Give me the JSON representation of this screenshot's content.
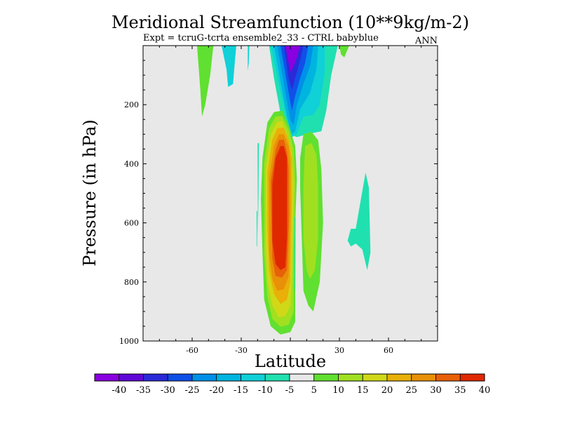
{
  "chart_data": {
    "type": "heatmap",
    "title": "Meridional Streamfunction (10**9kg/m-2)",
    "subtitle": "Expt = tcruG-tcrta ensemble2_33 - CTRL babyblue",
    "season": "ANN",
    "xlabel": "Latitude",
    "ylabel": "Pressure (in hPa)",
    "xlim": [
      -90,
      90
    ],
    "ylim": [
      0,
      1000
    ],
    "y_reversed": true,
    "x_ticks": [
      -60,
      -30,
      0,
      30,
      60
    ],
    "x_tick_labels": [
      "-60",
      "-30",
      "",
      "30",
      "60"
    ],
    "y_ticks": [
      200,
      400,
      600,
      800,
      1000
    ],
    "y_tick_labels": [
      "200",
      "400",
      "600",
      "800",
      "1000"
    ],
    "colorbar": {
      "levels": [
        -40,
        -35,
        -30,
        -25,
        -20,
        -15,
        -10,
        -5,
        5,
        10,
        15,
        20,
        25,
        30,
        35,
        40
      ],
      "labels": [
        "-40",
        "-35",
        "-30",
        "-25",
        "-20",
        "-15",
        "-10",
        "-5",
        "5",
        "10",
        "15",
        "20",
        "25",
        "30",
        "35",
        "40"
      ],
      "colors": [
        "#8a00e0",
        "#5f08d8",
        "#2a2ad8",
        "#1050e8",
        "#0090e8",
        "#00b4e0",
        "#10d0d8",
        "#20e0b0",
        "#e8e8e8",
        "#60e030",
        "#a0e020",
        "#d0d818",
        "#e8b008",
        "#e89008",
        "#e86008",
        "#e02800"
      ]
    },
    "background_color": "#e8e8e8",
    "features": [
      {
        "name": "main-positive-cell",
        "lat_range": [
          -17,
          3
        ],
        "p_range": [
          220,
          975
        ],
        "max": 40
      },
      {
        "name": "upper-negative-cell",
        "lat_range": [
          -13,
          22
        ],
        "p_range": [
          0,
          320
        ],
        "min": -40
      },
      {
        "name": "positive-cell-nh",
        "lat_range": [
          5,
          20
        ],
        "p_range": [
          280,
          1000
        ],
        "max": 15
      },
      {
        "name": "upper-left-positive",
        "lat_range": [
          -56,
          -48
        ],
        "p_range": [
          0,
          240
        ],
        "max": 10
      },
      {
        "name": "small-negative-sh",
        "lat_range": [
          -41,
          -34
        ],
        "p_range": [
          0,
          150
        ],
        "min": -10
      },
      {
        "name": "right-negative-patch",
        "lat_range": [
          35,
          48
        ],
        "p_range": [
          430,
          780
        ],
        "min": -10
      }
    ]
  }
}
